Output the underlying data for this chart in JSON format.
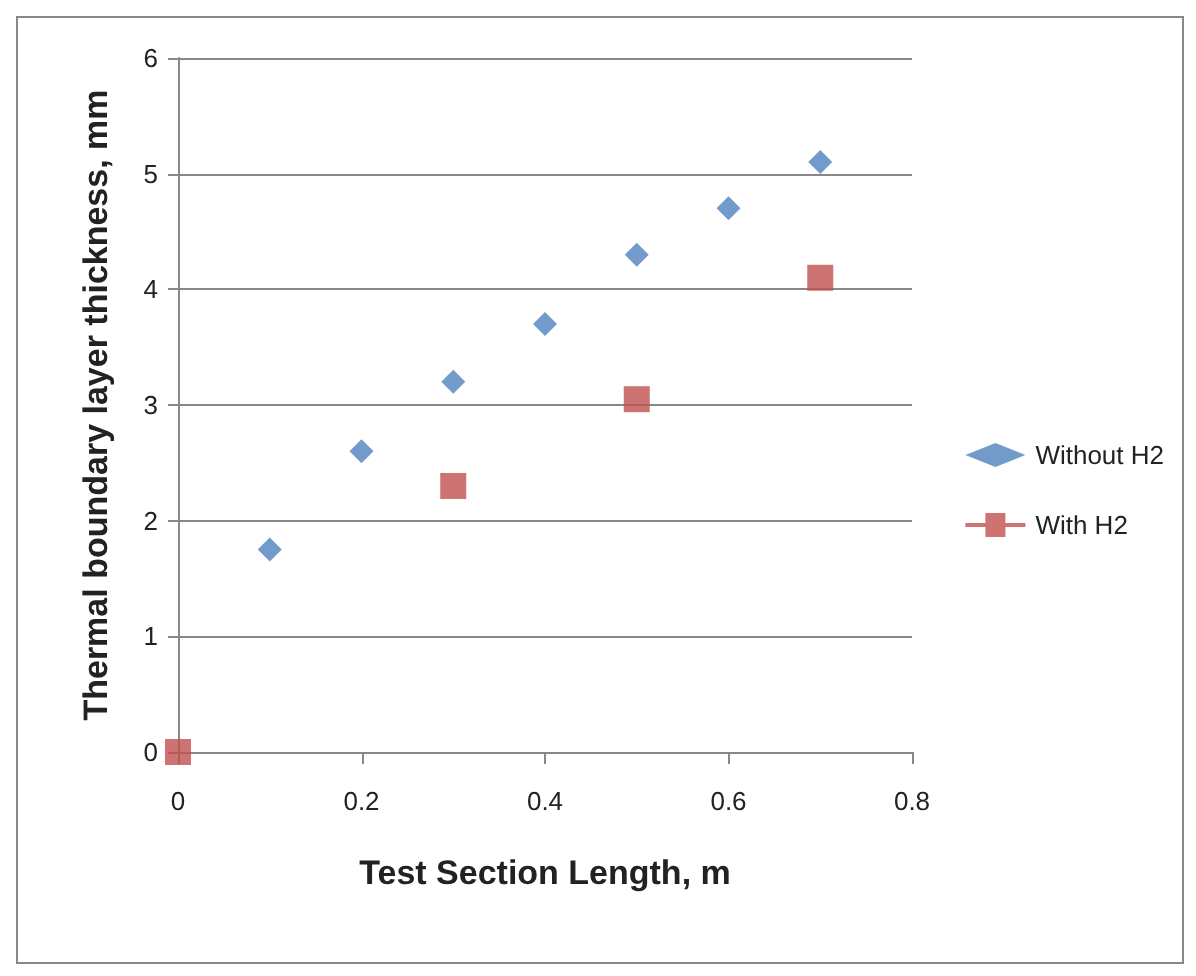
{
  "chart_data": {
    "type": "scatter",
    "xlabel": "Test Section Length, m",
    "ylabel": "Thermal boundary layer thickness, mm",
    "xlim": [
      0,
      0.8
    ],
    "xticks": [
      0,
      0.2,
      0.4,
      0.6,
      0.8
    ],
    "ylim": [
      0,
      6
    ],
    "yticks": [
      0,
      1,
      2,
      3,
      4,
      5,
      6
    ],
    "grid": "y",
    "legend": "right",
    "series": [
      {
        "name": "Without H2",
        "color": "#4f81bd",
        "marker": "diamond",
        "x": [
          0.1,
          0.2,
          0.3,
          0.4,
          0.5,
          0.6,
          0.7
        ],
        "values": [
          1.75,
          2.6,
          3.2,
          3.7,
          4.3,
          4.7,
          5.1
        ]
      },
      {
        "name": "With H2",
        "color": "#c0504d",
        "marker": "square",
        "x": [
          0,
          0.3,
          0.5,
          0.7
        ],
        "values": [
          0,
          2.3,
          3.05,
          4.1
        ]
      }
    ]
  }
}
